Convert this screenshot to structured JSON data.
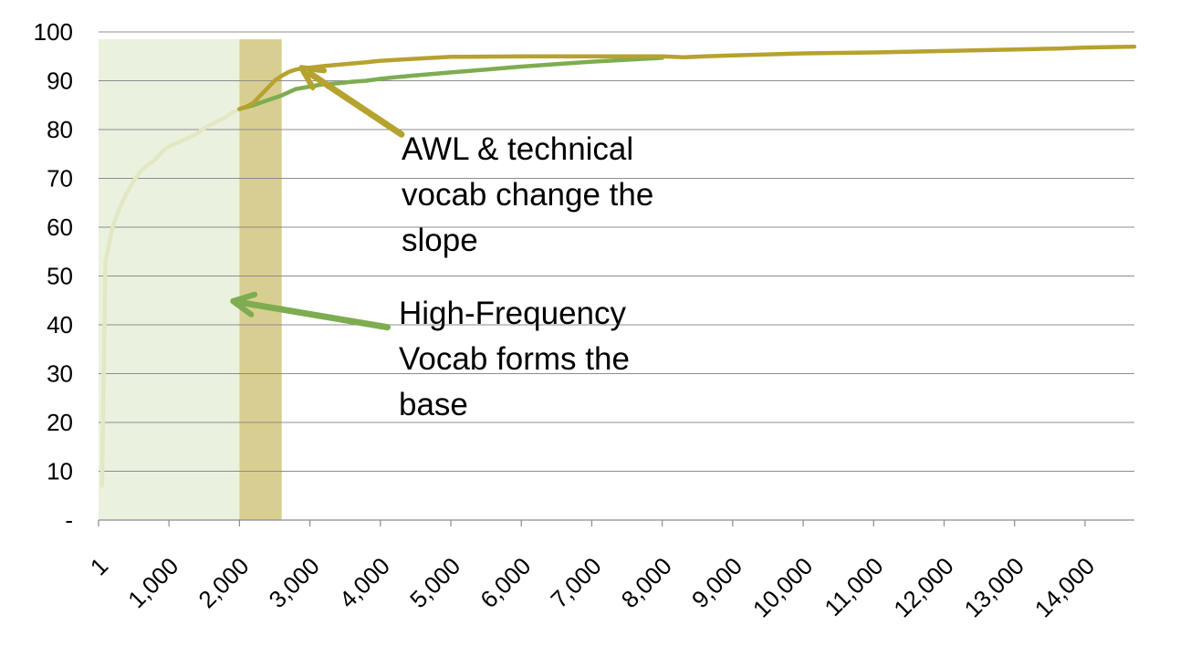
{
  "chart_data": {
    "type": "line",
    "title": "",
    "xlabel": "",
    "ylabel": "",
    "x_tick_labels": [
      "1",
      "1,000",
      "2,000",
      "3,000",
      "4,000",
      "5,000",
      "6,000",
      "7,000",
      "8,000",
      "9,000",
      "10,000",
      "11,000",
      "12,000",
      "13,000",
      "14,000"
    ],
    "x_tick_values": [
      1,
      1000,
      2000,
      3000,
      4000,
      5000,
      6000,
      7000,
      8000,
      9000,
      10000,
      11000,
      12000,
      13000,
      14000
    ],
    "y_tick_labels": [
      "-",
      "10",
      "20",
      "30",
      "40",
      "50",
      "60",
      "70",
      "80",
      "90",
      "100"
    ],
    "y_tick_values": [
      0,
      10,
      20,
      30,
      40,
      50,
      60,
      70,
      80,
      90,
      100
    ],
    "xlim": [
      1,
      14700
    ],
    "ylim": [
      0,
      100
    ],
    "grid": "horizontal",
    "legend": "none",
    "shaded_regions": [
      {
        "x_start": 1,
        "x_end": 2000,
        "y_top": 98.5,
        "color": "#EAF2DF"
      },
      {
        "x_start": 2000,
        "x_end": 2600,
        "y_top": 98.5,
        "color": "#D9CE91"
      }
    ],
    "series": [
      {
        "color": "#E3E7C4",
        "points": [
          [
            50,
            7
          ],
          [
            100,
            53
          ],
          [
            200,
            60
          ],
          [
            300,
            64
          ],
          [
            400,
            67
          ],
          [
            500,
            69.5
          ],
          [
            600,
            71.5
          ],
          [
            700,
            72.8
          ],
          [
            800,
            73.8
          ],
          [
            900,
            75.5
          ],
          [
            1000,
            76.5
          ],
          [
            1100,
            77.2
          ],
          [
            1200,
            77.8
          ],
          [
            1300,
            78.5
          ],
          [
            1400,
            79.2
          ],
          [
            1500,
            80.3
          ],
          [
            1600,
            81
          ],
          [
            1700,
            81.8
          ],
          [
            1800,
            82.5
          ],
          [
            1900,
            83.5
          ],
          [
            2000,
            84.2
          ]
        ]
      },
      {
        "color": "#7DAD50",
        "points": [
          [
            2000,
            84.2
          ],
          [
            2200,
            85
          ],
          [
            2400,
            86
          ],
          [
            2600,
            87
          ],
          [
            2800,
            88.3
          ],
          [
            3000,
            88.8
          ],
          [
            3200,
            89.3
          ],
          [
            3400,
            89.5
          ],
          [
            3600,
            89.8
          ],
          [
            3800,
            90
          ],
          [
            4000,
            90.4
          ],
          [
            4200,
            90.7
          ],
          [
            4500,
            91.1
          ],
          [
            5000,
            91.7
          ],
          [
            5500,
            92.3
          ],
          [
            6000,
            92.9
          ],
          [
            6500,
            93.4
          ],
          [
            7000,
            93.9
          ],
          [
            7500,
            94.3
          ],
          [
            8000,
            94.7
          ]
        ]
      },
      {
        "color": "#B6A22E",
        "points": [
          [
            2000,
            84.2
          ],
          [
            2100,
            84.7
          ],
          [
            2200,
            85.5
          ],
          [
            2300,
            87
          ],
          [
            2400,
            88.5
          ],
          [
            2500,
            90
          ],
          [
            2600,
            91
          ],
          [
            2700,
            91.8
          ],
          [
            2800,
            92.3
          ],
          [
            2900,
            92.5
          ],
          [
            3000,
            92.7
          ],
          [
            3200,
            93
          ],
          [
            3500,
            93.4
          ],
          [
            3800,
            93.8
          ],
          [
            4000,
            94.1
          ],
          [
            4500,
            94.5
          ],
          [
            5000,
            94.9
          ],
          [
            6000,
            95
          ],
          [
            7000,
            95
          ],
          [
            8000,
            95
          ],
          [
            8300,
            94.8
          ],
          [
            8600,
            95
          ],
          [
            9000,
            95.2
          ],
          [
            9500,
            95.4
          ],
          [
            10000,
            95.6
          ],
          [
            11000,
            95.8
          ],
          [
            12000,
            96.1
          ],
          [
            13000,
            96.4
          ],
          [
            13600,
            96.6
          ],
          [
            14000,
            96.8
          ],
          [
            14700,
            97
          ]
        ]
      }
    ],
    "annotations": [
      {
        "id": "awl",
        "lines": [
          "AWL & technical",
          "vocab change the",
          "slope"
        ],
        "color": "#B6A22E",
        "arrow_from": [
          4300,
          79
        ],
        "arrow_to": [
          3000,
          91.5
        ]
      },
      {
        "id": "hf",
        "lines": [
          "High-Frequency",
          "Vocab forms the",
          "base"
        ],
        "color": "#7DAD50",
        "arrow_from": [
          4100,
          39.5
        ],
        "arrow_to": [
          2050,
          44.5
        ]
      }
    ]
  }
}
